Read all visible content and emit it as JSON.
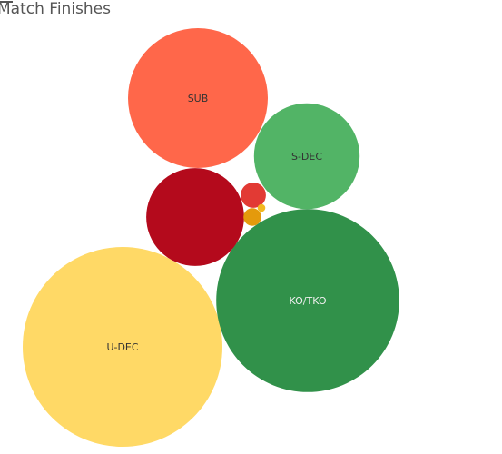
{
  "chart_data": {
    "type": "bubble",
    "title": "Match Finishes",
    "labels_color_dark": "#333333",
    "labels_color_light": "#f0f0f0",
    "bubbles": [
      {
        "label": "U-DEC",
        "value": 100,
        "color": "#ffd966"
      },
      {
        "label": "KO/TKO",
        "value": 84,
        "color": "#31914a"
      },
      {
        "label": "SUB",
        "value": 49,
        "color": "#ff674a"
      },
      {
        "label": "",
        "value": 24,
        "color": "#b40a1c"
      },
      {
        "label": "S-DEC",
        "value": 28,
        "color": "#52b466"
      },
      {
        "label": "",
        "value": 1.6,
        "color": "#e23a34"
      },
      {
        "label": "",
        "value": 0.8,
        "color": "#e49a0c"
      },
      {
        "label": "",
        "value": 0.15,
        "color": "#f2b820"
      }
    ]
  }
}
